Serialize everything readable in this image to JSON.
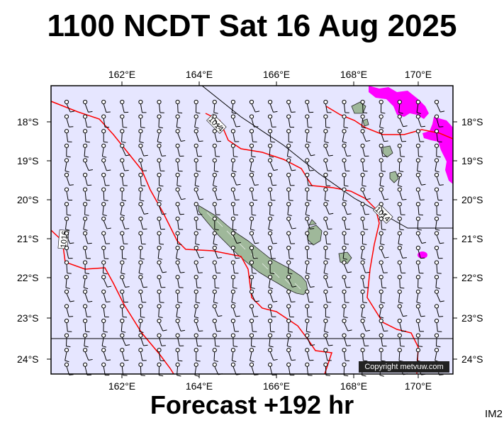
{
  "title": "1100 NCDT Sat 16 Aug 2025",
  "subtitle": "Forecast +192 hr",
  "image_tag": "IM2",
  "copyright": "Copyright metvuw.com",
  "lon_labels": [
    "162°E",
    "164°E",
    "166°E",
    "168°E",
    "170°E"
  ],
  "lat_labels": [
    "18°S",
    "19°S",
    "20°S",
    "21°S",
    "22°S",
    "23°S",
    "24°S"
  ],
  "isobar_labels": [
    "1014",
    "1014",
    "1016"
  ],
  "colors": {
    "ocean": "#e6e6ff",
    "isobar": "#ff0000",
    "rain": "#ff00ff",
    "land": "#9fb89a",
    "barb": "#000000"
  }
}
